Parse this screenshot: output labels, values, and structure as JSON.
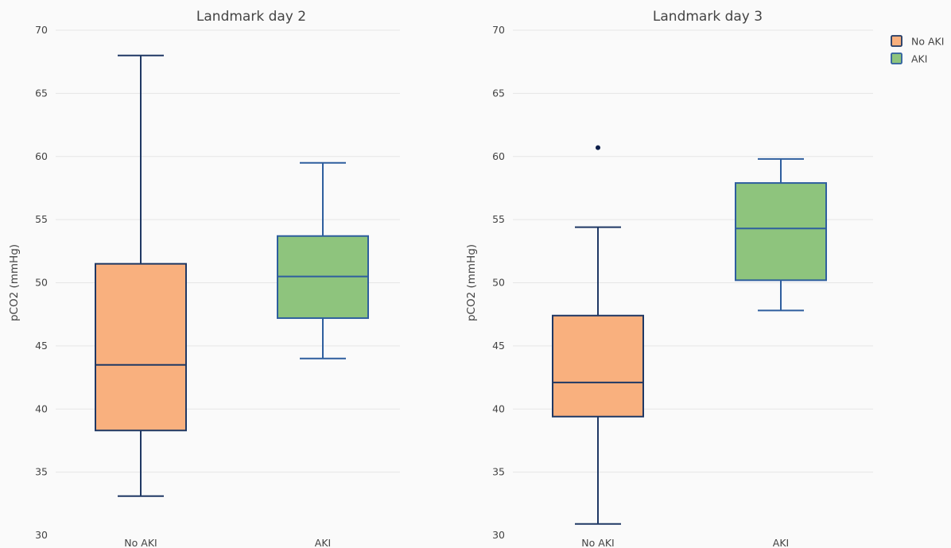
{
  "chart_data": [
    {
      "type": "box",
      "title": "Landmark day 2",
      "ylabel": "pCO2 (mmHg)",
      "ylim": [
        30,
        70
      ],
      "yticks": [
        "30",
        "35",
        "40",
        "45",
        "50",
        "55",
        "60",
        "65",
        "70"
      ],
      "grid": true,
      "categories": [
        "No AKI",
        "AKI"
      ],
      "series": [
        {
          "name": "No AKI",
          "category": "No AKI",
          "color": "#f9b07e",
          "min": 33.1,
          "q1": 38.3,
          "median": 43.5,
          "q3": 51.5,
          "max": 68,
          "outliers": []
        },
        {
          "name": "AKI",
          "category": "AKI",
          "color": "#8ec47d",
          "min": 44,
          "q1": 47.2,
          "median": 50.5,
          "q3": 53.7,
          "max": 59.5,
          "outliers": []
        }
      ]
    },
    {
      "type": "box",
      "title": "Landmark day 3",
      "ylabel": "pCO2 (mmHg)",
      "ylim": [
        30,
        70
      ],
      "yticks": [
        "30",
        "35",
        "40",
        "45",
        "50",
        "55",
        "60",
        "65",
        "70"
      ],
      "grid": true,
      "categories": [
        "No AKI",
        "AKI"
      ],
      "series": [
        {
          "name": "No AKI",
          "category": "No AKI",
          "color": "#f9b07e",
          "min": 30.9,
          "q1": 39.4,
          "median": 42.1,
          "q3": 47.4,
          "max": 54.4,
          "outliers": [
            60.7
          ]
        },
        {
          "name": "AKI",
          "category": "AKI",
          "color": "#8ec47d",
          "min": 47.8,
          "q1": 50.2,
          "median": 54.3,
          "q3": 57.9,
          "max": 59.8,
          "outliers": []
        }
      ]
    }
  ],
  "legend": {
    "placement": "top-right",
    "items": [
      {
        "label": "No AKI",
        "color": "#f9b07e"
      },
      {
        "label": "AKI",
        "color": "#8ec47d"
      }
    ]
  },
  "colors": {
    "no_aki_edge": "#1f3864",
    "aki_edge": "#2e5e9e",
    "grid": "#e6e6e6",
    "text": "#444444",
    "background": "#fafafa"
  }
}
